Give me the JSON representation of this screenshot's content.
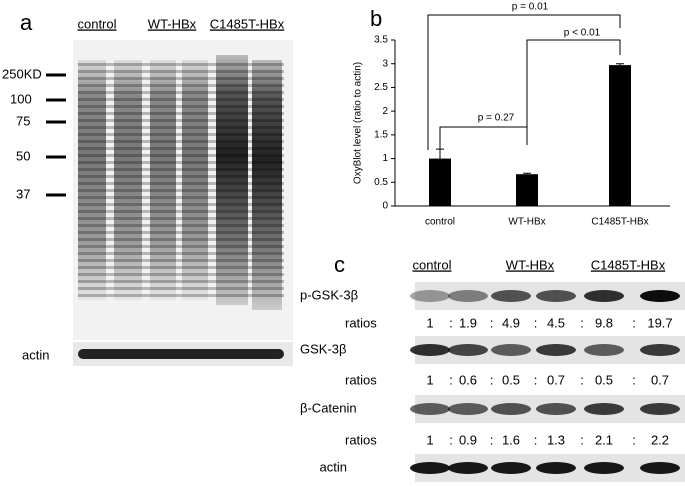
{
  "chart_data": {
    "type": "bar",
    "panel_label": "b",
    "ylabel": "OxyBlot level (ratio to actin)",
    "categories": [
      "control",
      "WT-HBx",
      "C1485T-HBx"
    ],
    "values": [
      1.0,
      0.67,
      2.97
    ],
    "errors": [
      0.2,
      0.02,
      0.03
    ],
    "color": "#000000",
    "ylim": [
      0,
      3.5
    ],
    "yticks": [
      0,
      0.5,
      1,
      1.5,
      2,
      2.5,
      3,
      3.5
    ],
    "annotations": [
      "p = 0.27",
      "p < 0.01",
      "p = 0.01"
    ]
  },
  "panel_a": {
    "label": "a",
    "groups": [
      "control",
      "WT-HBx",
      "C1485T-HBx"
    ],
    "markers": [
      "250KD",
      "100",
      "75",
      "50",
      "37"
    ],
    "loading": "actin"
  },
  "panel_c": {
    "label": "c",
    "groups": [
      "control",
      "WT-HBx",
      "C1485T-HBx"
    ],
    "ratio_label": "ratios",
    "rows": [
      {
        "name": "p-GSK-3β",
        "ratios": [
          1,
          1.9,
          4.9,
          4.5,
          9.8,
          19.7
        ]
      },
      {
        "name": "GSK-3β",
        "ratios": [
          1,
          0.6,
          0.5,
          0.7,
          0.5,
          0.7
        ]
      },
      {
        "name": "β-Catenin",
        "ratios": [
          1,
          0.9,
          1.6,
          1.3,
          2.1,
          2.2
        ]
      }
    ],
    "loading": "actin"
  }
}
